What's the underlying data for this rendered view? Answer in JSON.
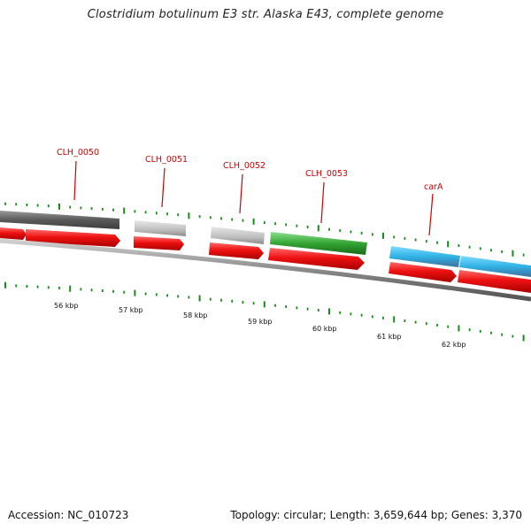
{
  "header": {
    "title": "Clostridium botulinum E3 str. Alaska E43, complete genome"
  },
  "footer": {
    "accession": "Accession: NC_010723",
    "summary": "Topology: circular; Length: 3,659,644 bp; Genes: 3,370"
  },
  "genes": [
    {
      "id": "CLH_0050",
      "label": "CLH_0050",
      "color": "#6e6e6e"
    },
    {
      "id": "CLH_0051",
      "label": "CLH_0051",
      "color": "#bdbdbd"
    },
    {
      "id": "CLH_0052",
      "label": "CLH_0052",
      "color": "#bdbdbd"
    },
    {
      "id": "CLH_0053",
      "label": "CLH_0053",
      "color": "#3aa53a"
    },
    {
      "id": "carA",
      "label": "carA",
      "color": "#2fb2e6"
    }
  ],
  "scale": {
    "labels": [
      "56 kbp",
      "57 kbp",
      "58 kbp",
      "59 kbp",
      "60 kbp",
      "61 kbp",
      "62 kbp"
    ]
  },
  "colors": {
    "cds": "#ee1111",
    "backbone": "#8a8a8a",
    "tick": "#1a8a1a",
    "label": "#cc0000"
  }
}
